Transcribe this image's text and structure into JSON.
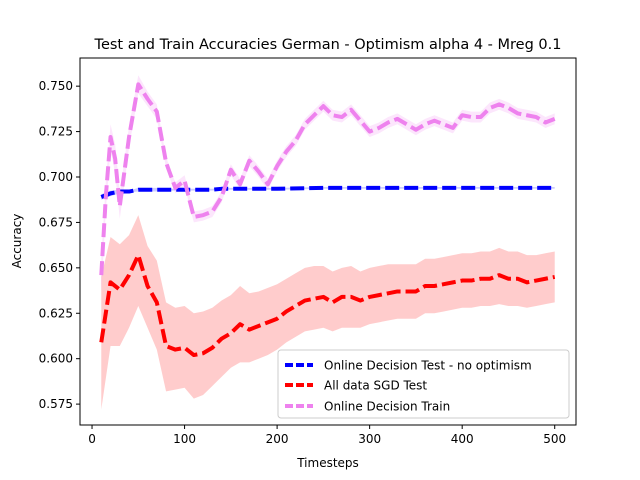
{
  "chart_data": {
    "type": "line",
    "title": "Test and Train Accuracies German - Optimism alpha 4 - Mreg 0.1",
    "xlabel": "Timesteps",
    "ylabel": "Accuracy",
    "xlim": [
      -13,
      523
    ],
    "ylim": [
      0.5635,
      0.7655
    ],
    "xticks": [
      0,
      100,
      200,
      300,
      400,
      500
    ],
    "yticks": [
      0.575,
      0.6,
      0.625,
      0.65,
      0.675,
      0.7,
      0.725,
      0.75
    ],
    "ytick_labels": [
      "0.575",
      "0.600",
      "0.625",
      "0.650",
      "0.675",
      "0.700",
      "0.725",
      "0.750"
    ],
    "legend_position": "lower right",
    "grid": false,
    "series": [
      {
        "name": "Online Decision Test - no optimism",
        "color": "#0000ff",
        "x": [
          10,
          20,
          30,
          40,
          50,
          60,
          70,
          80,
          90,
          100,
          110,
          120,
          130,
          140,
          150,
          200,
          250,
          300,
          350,
          400,
          450,
          500
        ],
        "y": [
          0.689,
          0.691,
          0.692,
          0.692,
          0.693,
          0.693,
          0.693,
          0.693,
          0.693,
          0.693,
          0.693,
          0.693,
          0.693,
          0.6935,
          0.6935,
          0.6935,
          0.694,
          0.694,
          0.694,
          0.694,
          0.694,
          0.694
        ],
        "y_lower": [
          0.6875,
          0.6895,
          0.691,
          0.6915,
          0.692,
          0.692,
          0.692,
          0.6925,
          0.6925,
          0.6925,
          0.6925,
          0.6925,
          0.6925,
          0.693,
          0.693,
          0.693,
          0.6935,
          0.6935,
          0.6935,
          0.6935,
          0.6935,
          0.6935
        ],
        "y_upper": [
          0.6905,
          0.6925,
          0.693,
          0.6925,
          0.694,
          0.694,
          0.694,
          0.6935,
          0.6935,
          0.6935,
          0.6935,
          0.6935,
          0.6935,
          0.694,
          0.694,
          0.694,
          0.6945,
          0.6945,
          0.6945,
          0.6945,
          0.6945,
          0.6945
        ]
      },
      {
        "name": "All data SGD Test",
        "color": "#ff0000",
        "x": [
          10,
          20,
          30,
          40,
          50,
          60,
          70,
          80,
          90,
          100,
          110,
          120,
          130,
          140,
          150,
          160,
          170,
          180,
          190,
          200,
          210,
          220,
          230,
          240,
          250,
          260,
          270,
          280,
          290,
          300,
          310,
          320,
          330,
          340,
          350,
          360,
          370,
          380,
          390,
          400,
          410,
          420,
          430,
          440,
          450,
          460,
          470,
          480,
          490,
          500
        ],
        "y": [
          0.609,
          0.642,
          0.638,
          0.646,
          0.657,
          0.64,
          0.631,
          0.607,
          0.605,
          0.606,
          0.602,
          0.603,
          0.606,
          0.611,
          0.614,
          0.619,
          0.616,
          0.618,
          0.62,
          0.622,
          0.626,
          0.629,
          0.632,
          0.633,
          0.634,
          0.631,
          0.634,
          0.634,
          0.632,
          0.634,
          0.635,
          0.636,
          0.637,
          0.637,
          0.637,
          0.64,
          0.64,
          0.641,
          0.642,
          0.643,
          0.643,
          0.644,
          0.644,
          0.646,
          0.644,
          0.644,
          0.642,
          0.643,
          0.644,
          0.645
        ],
        "y_lower": [
          0.572,
          0.607,
          0.607,
          0.617,
          0.629,
          0.617,
          0.605,
          0.582,
          0.583,
          0.584,
          0.578,
          0.58,
          0.585,
          0.59,
          0.595,
          0.598,
          0.598,
          0.6,
          0.602,
          0.605,
          0.609,
          0.612,
          0.615,
          0.616,
          0.617,
          0.615,
          0.617,
          0.617,
          0.617,
          0.619,
          0.62,
          0.621,
          0.622,
          0.622,
          0.622,
          0.625,
          0.625,
          0.626,
          0.627,
          0.628,
          0.628,
          0.629,
          0.629,
          0.63,
          0.629,
          0.629,
          0.628,
          0.629,
          0.63,
          0.631
        ],
        "y_upper": [
          0.645,
          0.667,
          0.663,
          0.668,
          0.679,
          0.662,
          0.654,
          0.631,
          0.628,
          0.629,
          0.625,
          0.626,
          0.628,
          0.632,
          0.635,
          0.64,
          0.636,
          0.637,
          0.639,
          0.641,
          0.644,
          0.647,
          0.65,
          0.651,
          0.651,
          0.648,
          0.65,
          0.651,
          0.648,
          0.65,
          0.651,
          0.652,
          0.652,
          0.652,
          0.652,
          0.655,
          0.655,
          0.656,
          0.657,
          0.658,
          0.658,
          0.659,
          0.659,
          0.661,
          0.659,
          0.659,
          0.657,
          0.657,
          0.658,
          0.659
        ]
      },
      {
        "name": "Online Decision Train",
        "color": "#ee82ee",
        "x": [
          10,
          15,
          20,
          25,
          30,
          40,
          50,
          60,
          70,
          80,
          90,
          100,
          110,
          120,
          130,
          140,
          150,
          160,
          170,
          180,
          190,
          200,
          210,
          220,
          230,
          240,
          250,
          260,
          270,
          280,
          290,
          300,
          310,
          320,
          330,
          340,
          350,
          360,
          370,
          380,
          390,
          400,
          410,
          420,
          430,
          440,
          450,
          460,
          470,
          480,
          490,
          500
        ],
        "y": [
          0.646,
          0.69,
          0.722,
          0.71,
          0.684,
          0.722,
          0.751,
          0.743,
          0.736,
          0.708,
          0.694,
          0.698,
          0.678,
          0.679,
          0.681,
          0.689,
          0.704,
          0.696,
          0.709,
          0.703,
          0.696,
          0.706,
          0.714,
          0.72,
          0.729,
          0.734,
          0.739,
          0.734,
          0.733,
          0.737,
          0.731,
          0.725,
          0.727,
          0.73,
          0.732,
          0.729,
          0.726,
          0.729,
          0.731,
          0.729,
          0.727,
          0.734,
          0.733,
          0.733,
          0.738,
          0.74,
          0.738,
          0.735,
          0.734,
          0.733,
          0.73,
          0.732
        ],
        "y_lower": [
          0.636,
          0.682,
          0.715,
          0.702,
          0.677,
          0.716,
          0.746,
          0.739,
          0.732,
          0.705,
          0.691,
          0.695,
          0.675,
          0.676,
          0.678,
          0.686,
          0.701,
          0.693,
          0.706,
          0.7,
          0.693,
          0.703,
          0.711,
          0.717,
          0.726,
          0.731,
          0.736,
          0.731,
          0.73,
          0.734,
          0.728,
          0.722,
          0.724,
          0.727,
          0.729,
          0.726,
          0.723,
          0.726,
          0.728,
          0.726,
          0.724,
          0.731,
          0.73,
          0.73,
          0.735,
          0.737,
          0.735,
          0.732,
          0.731,
          0.73,
          0.727,
          0.729
        ],
        "y_upper": [
          0.656,
          0.698,
          0.729,
          0.718,
          0.691,
          0.728,
          0.756,
          0.747,
          0.74,
          0.711,
          0.697,
          0.701,
          0.681,
          0.682,
          0.684,
          0.692,
          0.707,
          0.699,
          0.712,
          0.706,
          0.699,
          0.709,
          0.717,
          0.723,
          0.732,
          0.737,
          0.742,
          0.737,
          0.736,
          0.74,
          0.734,
          0.728,
          0.73,
          0.733,
          0.735,
          0.732,
          0.729,
          0.732,
          0.734,
          0.732,
          0.73,
          0.737,
          0.736,
          0.736,
          0.741,
          0.743,
          0.741,
          0.738,
          0.737,
          0.736,
          0.733,
          0.735
        ]
      }
    ]
  }
}
